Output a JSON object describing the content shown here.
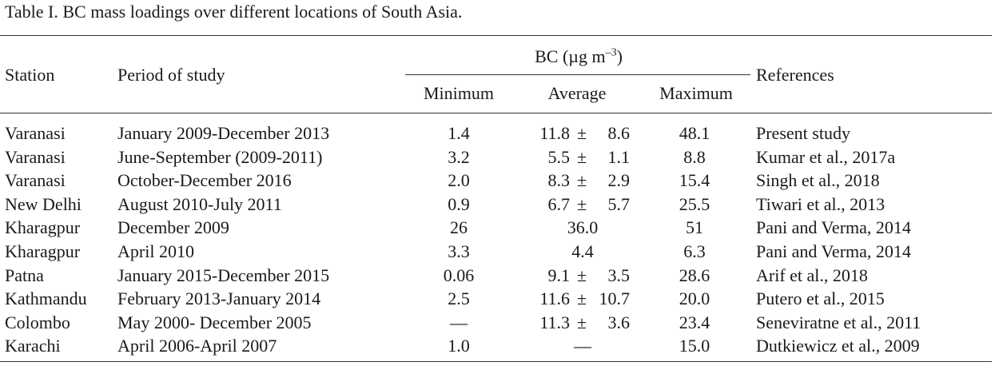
{
  "caption": "Table I. BC mass loadings over different locations of South Asia.",
  "headers": {
    "station": "Station",
    "period": "Period of study",
    "bc_group_prefix": "BC (µg m",
    "bc_group_sup": "–3",
    "bc_group_suffix": ")",
    "minimum": "Minimum",
    "average": "Average",
    "maximum": "Maximum",
    "references": "References"
  },
  "rows": [
    {
      "station": "Varanasi",
      "period": "January 2009-December 2013",
      "min": "1.4",
      "avg_val": "11.8",
      "avg_pm": "±",
      "avg_sd": "8.6",
      "max": "48.1",
      "ref": "Present study"
    },
    {
      "station": "Varanasi",
      "period": "June-September (2009-2011)",
      "min": "3.2",
      "avg_val": "5.5",
      "avg_pm": "±",
      "avg_sd": "1.1",
      "max": "8.8",
      "ref": "Kumar et al., 2017a"
    },
    {
      "station": "Varanasi",
      "period": "October-December 2016",
      "min": "2.0",
      "avg_val": "8.3",
      "avg_pm": "±",
      "avg_sd": "2.9",
      "max": "15.4",
      "ref": "Singh et al., 2018"
    },
    {
      "station": "New Delhi",
      "period": "August 2010-July 2011",
      "min": "0.9",
      "avg_val": "6.7",
      "avg_pm": "±",
      "avg_sd": "5.7",
      "max": "25.5",
      "ref": "Tiwari et al., 2013"
    },
    {
      "station": "Kharagpur",
      "period": "December 2009",
      "min": "26",
      "avg_val": "36.0",
      "avg_pm": "",
      "avg_sd": "",
      "max": "51",
      "ref": "Pani and Verma, 2014"
    },
    {
      "station": "Kharagpur",
      "period": "April 2010",
      "min": "3.3",
      "avg_val": "4.4",
      "avg_pm": "",
      "avg_sd": "",
      "max": "6.3",
      "ref": "Pani and Verma, 2014"
    },
    {
      "station": "Patna",
      "period": "January 2015-December 2015",
      "min": "0.06",
      "avg_val": "9.1",
      "avg_pm": "±",
      "avg_sd": "3.5",
      "max": "28.6",
      "ref": "Arif et al., 2018"
    },
    {
      "station": "Kathmandu",
      "period": "February 2013-January 2014",
      "min": "2.5",
      "avg_val": "11.6",
      "avg_pm": "±",
      "avg_sd": "10.7",
      "max": "20.0",
      "ref": "Putero et al., 2015"
    },
    {
      "station": "Colombo",
      "period": "May 2000- December 2005",
      "min": "—",
      "avg_val": "11.3",
      "avg_pm": "±",
      "avg_sd": "3.6",
      "max": "23.4",
      "ref": "Seneviratne et al., 2011"
    },
    {
      "station": "Karachi",
      "period": "April 2006-April 2007",
      "min": "1.0",
      "avg_val": "—",
      "avg_pm": "",
      "avg_sd": "",
      "max": "15.0",
      "ref": "Dutkiewicz et al., 2009"
    }
  ]
}
